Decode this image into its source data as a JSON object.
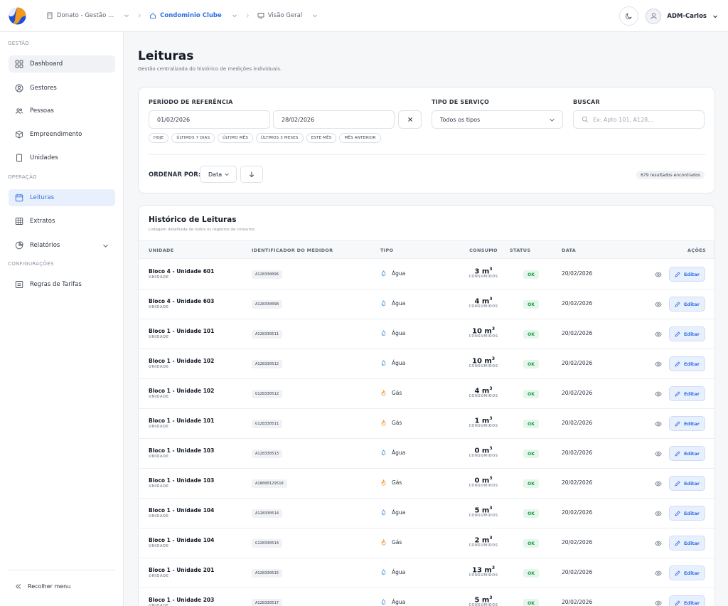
{
  "header": {
    "breadcrumbs": [
      {
        "label": "Donato - Gestão ..."
      },
      {
        "label": "Condominio Clube"
      },
      {
        "label": "Visão Geral"
      }
    ],
    "user_name": "ADM-Carlos"
  },
  "sidebar": {
    "section_gestao": "GESTÃO",
    "section_operacao": "OPERAÇÃO",
    "section_config": "CONFIGURAÇÕES",
    "items": [
      {
        "label": "Dashboard"
      },
      {
        "label": "Gestores"
      },
      {
        "label": "Pessoas"
      },
      {
        "label": "Empreendimento"
      },
      {
        "label": "Unidades"
      },
      {
        "label": "Leituras"
      },
      {
        "label": "Extratos"
      },
      {
        "label": "Relatórios"
      },
      {
        "label": "Regras de Tarifas"
      }
    ],
    "collapse_label": "Recolher menu"
  },
  "page": {
    "title": "Leituras",
    "subtitle": "Gestão centralizada do histórico de medições individuais."
  },
  "filters": {
    "period_label": "PERÍODO DE REFERÊNCIA",
    "date_start": "01/02/2026",
    "date_end": "28/02/2026",
    "service_label": "TIPO DE SERVIÇO",
    "service_value": "Todos os tipos",
    "search_label": "BUSCAR",
    "search_placeholder": "Ex: Apto 101, A128...",
    "quick": [
      "HOJE",
      "ÚLTIMOS 7 DIAS",
      "ÚLTIMO MÊS",
      "ÚLTIMOS 3 MESES",
      "ESTE MÊS",
      "MÊS ANTERIOR"
    ],
    "sort_label": "ORDENAR POR:",
    "sort_value": "Data",
    "results": "679 resultados encontrados"
  },
  "table": {
    "title": "Histórico de Leituras",
    "subtitle": "Listagem detalhada de todos os registros de consumo",
    "headers": {
      "unit": "UNIDADE",
      "meter": "IDENTIFICADOR DO MEDIDOR",
      "type": "TIPO",
      "consumption": "CONSUMO",
      "status": "STATUS",
      "date": "DATA",
      "actions": "AÇÕES"
    },
    "unit_sub": "UNIDADE",
    "cons_sub": "CONSUMIDOS",
    "edit_label": "Editar",
    "colors": {
      "water": "#3b8fe0",
      "gas": "#f08a1c",
      "ok_bg": "#e5f6ea",
      "ok_text": "#1e9a4b"
    },
    "rows": [
      {
        "unit": "Bloco 4 - Unidade 601",
        "meter": "A128330096",
        "type": "Água",
        "kind": "water",
        "cons": "3 m",
        "status": "OK",
        "date": "20/02/2026"
      },
      {
        "unit": "Bloco 4 - Unidade 603",
        "meter": "A128330098",
        "type": "Água",
        "kind": "water",
        "cons": "4 m",
        "status": "OK",
        "date": "20/02/2026"
      },
      {
        "unit": "Bloco 1 - Unidade 101",
        "meter": "A128330511",
        "type": "Água",
        "kind": "water",
        "cons": "10 m",
        "status": "OK",
        "date": "20/02/2026"
      },
      {
        "unit": "Bloco 1 - Unidade 102",
        "meter": "A128330512",
        "type": "Água",
        "kind": "water",
        "cons": "10 m",
        "status": "OK",
        "date": "20/02/2026"
      },
      {
        "unit": "Bloco 1 - Unidade 102",
        "meter": "G128330512",
        "type": "Gás",
        "kind": "gas",
        "cons": "4 m",
        "status": "OK",
        "date": "20/02/2026"
      },
      {
        "unit": "Bloco 1 - Unidade 101",
        "meter": "G128330511",
        "type": "Gás",
        "kind": "gas",
        "cons": "1 m",
        "status": "OK",
        "date": "20/02/2026"
      },
      {
        "unit": "Bloco 1 - Unidade 103",
        "meter": "A128330513",
        "type": "Água",
        "kind": "water",
        "cons": "0 m",
        "status": "OK",
        "date": "20/02/2026"
      },
      {
        "unit": "Bloco 1 - Unidade 103",
        "meter": "A18000129510",
        "type": "Gás",
        "kind": "gas",
        "cons": "0 m",
        "status": "OK",
        "date": "20/02/2026"
      },
      {
        "unit": "Bloco 1 - Unidade 104",
        "meter": "A128330514",
        "type": "Água",
        "kind": "water",
        "cons": "5 m",
        "status": "OK",
        "date": "20/02/2026"
      },
      {
        "unit": "Bloco 1 - Unidade 104",
        "meter": "G128330514",
        "type": "Gás",
        "kind": "gas",
        "cons": "2 m",
        "status": "OK",
        "date": "20/02/2026"
      },
      {
        "unit": "Bloco 1 - Unidade 201",
        "meter": "A128330515",
        "type": "Água",
        "kind": "water",
        "cons": "13 m",
        "status": "OK",
        "date": "20/02/2026"
      },
      {
        "unit": "Bloco 1 - Unidade 203",
        "meter": "A128330517",
        "type": "Água",
        "kind": "water",
        "cons": "5 m",
        "status": "OK",
        "date": "20/02/2026"
      }
    ]
  }
}
